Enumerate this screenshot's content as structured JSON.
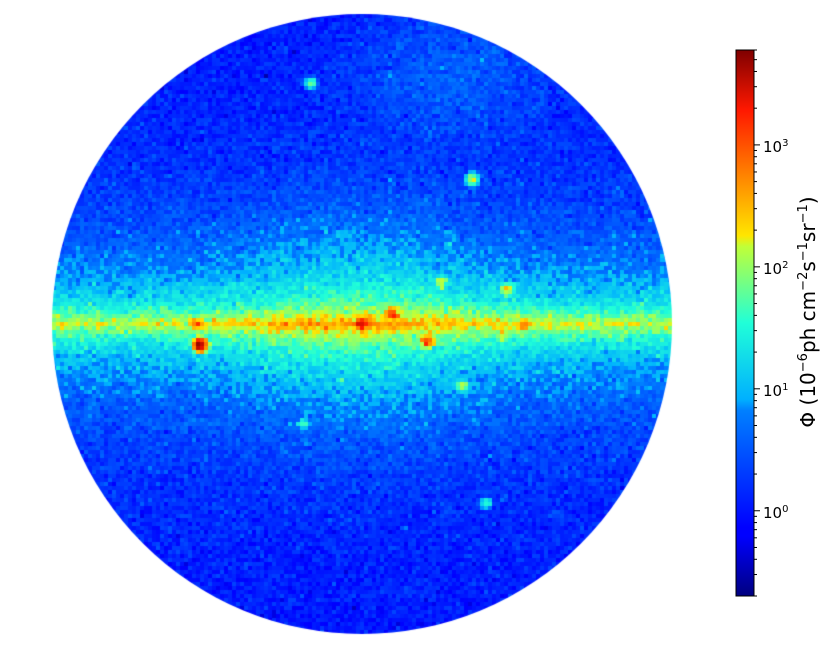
{
  "figure": {
    "description_kind": "all-sky map in circular projection",
    "colormap": "jet",
    "scale": "log"
  },
  "colorbar": {
    "label_symbol": "Φ",
    "label_prefix": " (10",
    "label_exp1": "−6",
    "label_mid1": "ph cm",
    "label_exp2": "−2",
    "label_mid2": "s",
    "label_exp3": "−1",
    "label_mid3": "sr",
    "label_exp4": "−1",
    "label_suffix": ")",
    "range_min": 0.2,
    "range_max": 6000,
    "ticks": [
      {
        "base": "10",
        "exp": "0",
        "value": 1
      },
      {
        "base": "10",
        "exp": "1",
        "value": 10
      },
      {
        "base": "10",
        "exp": "2",
        "value": 100
      },
      {
        "base": "10",
        "exp": "3",
        "value": 1000
      }
    ]
  },
  "sources": [
    {
      "lon": 0,
      "lat": 0,
      "flux": 3000
    },
    {
      "lon": -18,
      "lat": 3,
      "flux": 1500
    },
    {
      "lon": 94,
      "lat": -6,
      "flux": 6000
    },
    {
      "lon": -38,
      "lat": -5,
      "flux": 1500
    },
    {
      "lon": 96,
      "lat": 0,
      "flux": 500
    },
    {
      "lon": 33,
      "lat": 0,
      "flux": 300
    },
    {
      "lon": -94,
      "lat": 0,
      "flux": 500
    },
    {
      "lon": -84,
      "lat": 10,
      "flux": 200
    },
    {
      "lon": -82,
      "lat": -3,
      "flux": 150
    },
    {
      "lon": -46,
      "lat": 12,
      "flux": 150
    },
    {
      "lon": -58,
      "lat": -18,
      "flux": 120
    },
    {
      "lon": -64,
      "lat": 42,
      "flux": 150
    },
    {
      "lon": 30,
      "lat": 70,
      "flux": 60
    },
    {
      "lon": -72,
      "lat": -52,
      "flux": 40
    },
    {
      "lon": 34,
      "lat": -29,
      "flux": 40
    }
  ]
}
